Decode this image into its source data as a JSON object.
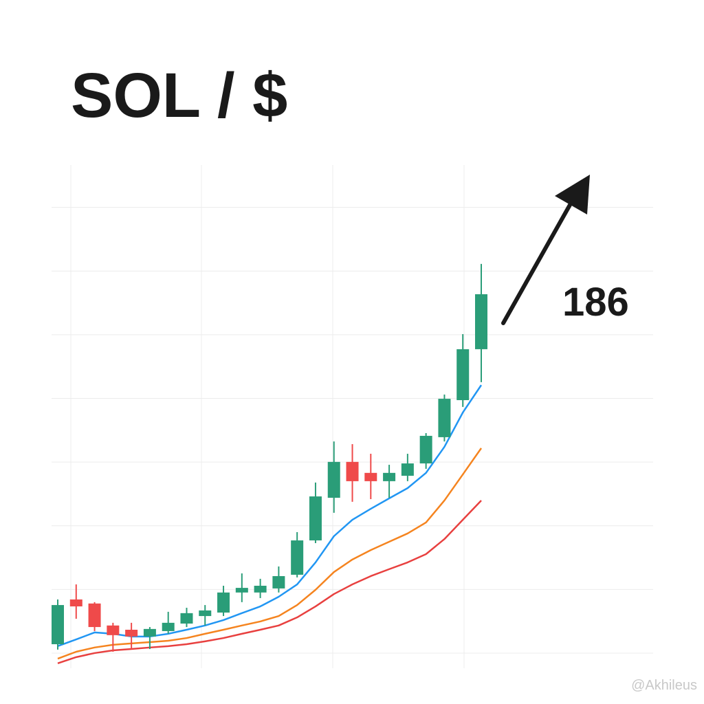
{
  "chart_data": {
    "type": "candlestick",
    "title": "SOL / $",
    "annotation": "186",
    "watermark": "@Akhileus",
    "categories": [
      null,
      null,
      null,
      null,
      null,
      null,
      null,
      null,
      null,
      null,
      null,
      null,
      null,
      null,
      null,
      null,
      null,
      null,
      null,
      null,
      null,
      null,
      null,
      null
    ],
    "open": [
      4.6,
      27.8,
      25.7,
      14.3,
      12.1,
      8.6,
      11.4,
      15.3,
      19.2,
      21.0,
      31.4,
      31.4,
      33.5,
      40.6,
      58.4,
      80.5,
      99.1,
      93.4,
      89.1,
      91.9,
      98.3,
      111.9,
      131.1,
      157.5
    ],
    "high": [
      27.8,
      35.6,
      26.4,
      15.7,
      15.7,
      13.5,
      21.4,
      23.5,
      24.9,
      34.9,
      41.3,
      38.5,
      44.9,
      62.7,
      88.4,
      109.7,
      108.3,
      103.3,
      97.6,
      103.3,
      114.0,
      134.0,
      165.3,
      201.7
    ],
    "low": [
      1.8,
      17.8,
      11.4,
      0.7,
      2.1,
      2.1,
      10.0,
      13.5,
      14.3,
      19.2,
      26.4,
      28.5,
      31.4,
      39.2,
      57.0,
      72.7,
      78.4,
      79.8,
      80.5,
      89.1,
      95.5,
      109.7,
      127.6,
      140.4
    ],
    "close": [
      24.9,
      24.2,
      13.5,
      9.3,
      8.6,
      12.5,
      15.7,
      20.7,
      22.1,
      31.4,
      33.8,
      34.9,
      39.9,
      58.4,
      81.2,
      99.1,
      89.1,
      89.1,
      93.4,
      98.3,
      112.6,
      131.8,
      157.5,
      186.0
    ],
    "up_color": "#2a9d78",
    "down_color": "#ef4a4a",
    "lines": [
      {
        "color": "#2196f3",
        "values": [
          3.6,
          7.1,
          10.7,
          10.0,
          8.6,
          8.6,
          10.0,
          12.1,
          14.3,
          17.1,
          20.7,
          24.2,
          29.2,
          35.6,
          47.0,
          60.6,
          69.1,
          74.8,
          80.2,
          85.5,
          93.4,
          106.9,
          124.7,
          138.9
        ]
      },
      {
        "color": "#f5841f",
        "values": [
          -2.9,
          0.7,
          2.9,
          4.3,
          5.0,
          5.7,
          6.4,
          7.8,
          10.0,
          12.1,
          14.3,
          16.4,
          19.2,
          24.9,
          32.8,
          42.0,
          48.5,
          53.4,
          57.7,
          62.0,
          67.7,
          79.1,
          92.6,
          106.2
        ]
      },
      {
        "color": "#e8403f",
        "values": [
          -5.3,
          -2.1,
          0,
          1.4,
          2.1,
          2.9,
          3.6,
          4.6,
          6.1,
          7.8,
          10.0,
          12.1,
          14.3,
          18.5,
          24.2,
          30.6,
          35.6,
          39.9,
          43.5,
          47.0,
          51.3,
          59.1,
          69.1,
          79.1
        ]
      }
    ],
    "ylim": [
      -8,
      240
    ],
    "yticks": [
      0,
      33,
      66,
      99,
      132,
      165,
      198,
      231
    ],
    "grid": true
  }
}
